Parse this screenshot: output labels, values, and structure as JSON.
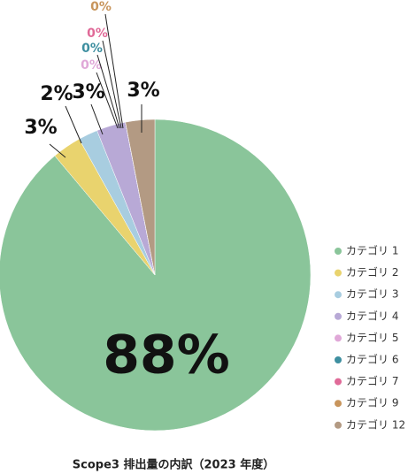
{
  "chart_data": {
    "type": "pie",
    "title": "Scope3 排出量の内訳（2023 年度）",
    "categories": [
      "カテゴリ 1",
      "カテゴリ 2",
      "カテゴリ 3",
      "カテゴリ 4",
      "カテゴリ 5",
      "カテゴリ 6",
      "カテゴリ 7",
      "カテゴリ 9",
      "カテゴリ 12"
    ],
    "values": [
      88,
      3,
      2,
      3,
      0,
      0,
      0,
      0,
      3
    ],
    "value_labels": [
      "88%",
      "3%",
      "2%",
      "3%",
      "0%",
      "0%",
      "0%",
      "0%",
      "3%"
    ],
    "colors": [
      "#8ac59a",
      "#e9d36e",
      "#a8cde0",
      "#b8a9d6",
      "#e0a8d8",
      "#3e8fa0",
      "#e06a98",
      "#c8955c",
      "#b39a83"
    ],
    "legend": "right"
  }
}
